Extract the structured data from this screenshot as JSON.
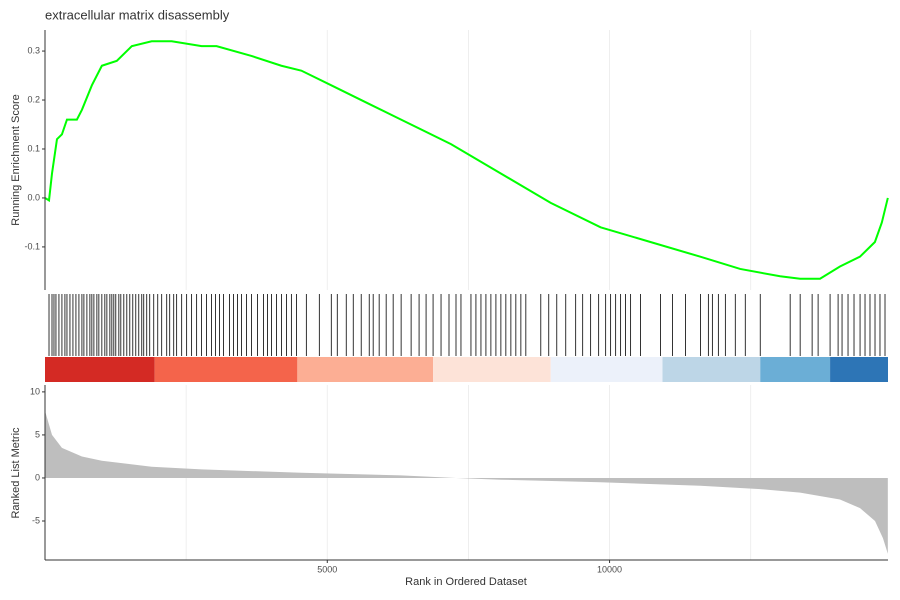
{
  "chart_data": {
    "type": "gsea",
    "title": "extracellular matrix disassembly",
    "xlabel": "Rank in Ordered Dataset",
    "xlim": [
      0,
      14932
    ],
    "xticks": [
      5000,
      10000
    ],
    "xgrid": [
      2500,
      5000,
      7500,
      10000,
      12500
    ],
    "running_score": {
      "ylabel": "Running Enrichment Score",
      "color": "#00ff00",
      "ylim": [
        -0.188,
        0.343
      ],
      "yticks": [
        -0.1,
        {
          "value": 0,
          "label": "0.0"
        },
        0.1,
        0.2,
        0.3
      ],
      "x": [
        0,
        71,
        124,
        212,
        300,
        389,
        565,
        654,
        830,
        1007,
        1272,
        1537,
        1890,
        2244,
        2774,
        3039,
        3657,
        4187,
        4541,
        5071,
        5777,
        6307,
        7191,
        8074,
        8958,
        9841,
        10724,
        11608,
        12314,
        13021,
        13375,
        13728,
        14081,
        14435,
        14700,
        14823,
        14929
      ],
      "values": [
        0.0,
        -0.005,
        0.05,
        0.12,
        0.13,
        0.16,
        0.16,
        0.18,
        0.23,
        0.27,
        0.28,
        0.31,
        0.32,
        0.32,
        0.31,
        0.31,
        0.29,
        0.27,
        0.26,
        0.23,
        0.19,
        0.16,
        0.11,
        0.05,
        -0.01,
        -0.06,
        -0.09,
        -0.12,
        -0.145,
        -0.16,
        -0.165,
        -0.165,
        -0.14,
        -0.12,
        -0.09,
        -0.05,
        0.0
      ]
    },
    "hits": [
      71,
      124,
      159,
      194,
      247,
      300,
      353,
      389,
      442,
      495,
      548,
      601,
      654,
      689,
      742,
      795,
      830,
      866,
      919,
      954,
      1007,
      1060,
      1096,
      1149,
      1184,
      1219,
      1254,
      1308,
      1343,
      1396,
      1449,
      1502,
      1555,
      1608,
      1661,
      1714,
      1749,
      1802,
      1855,
      1926,
      1997,
      2067,
      2156,
      2209,
      2280,
      2332,
      2421,
      2509,
      2597,
      2686,
      2774,
      2862,
      2951,
      3022,
      3092,
      3163,
      3269,
      3340,
      3410,
      3481,
      3569,
      3657,
      3764,
      3870,
      3940,
      4011,
      4099,
      4188,
      4276,
      4364,
      4453,
      4629,
      4859,
      5071,
      5177,
      5336,
      5460,
      5601,
      5743,
      5813,
      5919,
      6043,
      6167,
      6308,
      6485,
      6626,
      6750,
      6874,
      7015,
      7156,
      7280,
      7368,
      7545,
      7633,
      7722,
      7810,
      7898,
      7987,
      8075,
      8163,
      8252,
      8340,
      8429,
      8517,
      8782,
      8923,
      9065,
      9224,
      9400,
      9524,
      9665,
      9807,
      9931,
      10019,
      10108,
      10196,
      10284,
      10373,
      10549,
      10903,
      11114,
      11344,
      11609,
      11750,
      11821,
      11927,
      12051,
      12227,
      12404,
      12669,
      13199,
      13376,
      13588,
      13694,
      13906,
      14048,
      14118,
      14224,
      14330,
      14437,
      14525,
      14613,
      14702,
      14790,
      14879
    ],
    "bands": [
      {
        "start": 0,
        "end": 1944,
        "color": "#d42a24"
      },
      {
        "start": 1944,
        "end": 4470,
        "color": "#f4644b"
      },
      {
        "start": 4470,
        "end": 6874,
        "color": "#fcae94"
      },
      {
        "start": 6874,
        "end": 8958,
        "color": "#fde3d8"
      },
      {
        "start": 8958,
        "end": 10938,
        "color": "#ecf1fa"
      },
      {
        "start": 10938,
        "end": 12669,
        "color": "#bdd6e7"
      },
      {
        "start": 12669,
        "end": 13906,
        "color": "#6baed6"
      },
      {
        "start": 13906,
        "end": 14932,
        "color": "#2d75b6"
      }
    ],
    "metric": {
      "ylabel": "Ranked List Metric",
      "color": "#bebebe",
      "ylim": [
        -9.53,
        10.8
      ],
      "yticks": [
        -5,
        0,
        5,
        10
      ],
      "x": [
        0,
        124,
        300,
        654,
        1007,
        1890,
        2774,
        4541,
        6307,
        7280,
        8075,
        9841,
        11609,
        12669,
        13376,
        14081,
        14437,
        14702,
        14843,
        14929
      ],
      "values": [
        7.8,
        5,
        3.5,
        2.5,
        2.0,
        1.3,
        1.0,
        0.6,
        0.3,
        0,
        -0.2,
        -0.5,
        -0.9,
        -1.3,
        -1.7,
        -2.5,
        -3.5,
        -5,
        -7,
        -8.8
      ]
    }
  }
}
